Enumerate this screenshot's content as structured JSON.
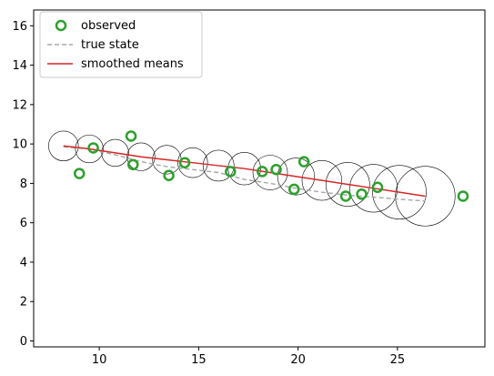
{
  "chart_data": {
    "type": "scatter",
    "xlim": [
      6.7,
      29.4
    ],
    "ylim": [
      -0.3,
      16.8
    ],
    "xticks": [
      10,
      15,
      20,
      25
    ],
    "yticks": [
      0,
      2,
      4,
      6,
      8,
      10,
      12,
      14,
      16
    ],
    "grid": false,
    "legend_position": "top-left",
    "legend": [
      {
        "label": "observed",
        "marker": "circle-open",
        "color": "#2ca02c"
      },
      {
        "label": "true state",
        "marker": "dashed-line",
        "color": "#aaaaaa"
      },
      {
        "label": "smoothed means",
        "marker": "solid-line",
        "color": "#d62728"
      }
    ],
    "series": [
      {
        "name": "observed",
        "kind": "points",
        "color": "#2ca02c",
        "x": [
          9.0,
          9.7,
          11.6,
          11.7,
          13.5,
          14.3,
          16.6,
          18.2,
          18.9,
          19.8,
          20.3,
          22.4,
          23.2,
          24.0,
          28.3
        ],
        "y": [
          8.5,
          9.8,
          10.4,
          8.95,
          8.4,
          9.05,
          8.6,
          8.6,
          8.7,
          7.7,
          9.1,
          7.35,
          7.45,
          7.8,
          7.35
        ]
      },
      {
        "name": "true state",
        "kind": "line",
        "style": "dashed",
        "color": "#aaaaaa",
        "x": [
          8.2,
          9.5,
          10.8,
          12.1,
          13.4,
          14.7,
          16.0,
          17.3,
          18.6,
          19.9,
          21.2,
          22.5,
          23.8,
          25.1,
          26.4
        ],
        "y": [
          9.85,
          9.75,
          9.45,
          9.1,
          8.85,
          8.7,
          8.55,
          8.2,
          8.0,
          7.75,
          7.55,
          7.4,
          7.3,
          7.2,
          7.1
        ]
      },
      {
        "name": "smoothed means",
        "kind": "line",
        "style": "solid",
        "color": "#d62728",
        "x": [
          8.2,
          9.5,
          10.8,
          12.1,
          13.4,
          14.7,
          16.0,
          17.3,
          18.6,
          19.9,
          21.2,
          22.5,
          23.8,
          25.1,
          26.4
        ],
        "y": [
          9.9,
          9.75,
          9.55,
          9.35,
          9.2,
          9.05,
          8.9,
          8.75,
          8.55,
          8.35,
          8.15,
          7.95,
          7.75,
          7.55,
          7.35
        ]
      },
      {
        "name": "covariance ellipses",
        "kind": "circles",
        "color": "#000000",
        "x": [
          8.2,
          9.5,
          10.8,
          12.1,
          13.4,
          14.7,
          16.0,
          17.3,
          18.6,
          19.9,
          21.2,
          22.5,
          23.8,
          25.1,
          26.4
        ],
        "y": [
          9.9,
          9.75,
          9.55,
          9.35,
          9.2,
          9.05,
          8.9,
          8.75,
          8.55,
          8.35,
          8.15,
          7.95,
          7.75,
          7.55,
          7.35
        ],
        "radius": [
          0.75,
          0.7,
          0.68,
          0.7,
          0.72,
          0.75,
          0.78,
          0.82,
          0.87,
          0.93,
          1.0,
          1.1,
          1.2,
          1.35,
          1.5
        ]
      }
    ]
  }
}
